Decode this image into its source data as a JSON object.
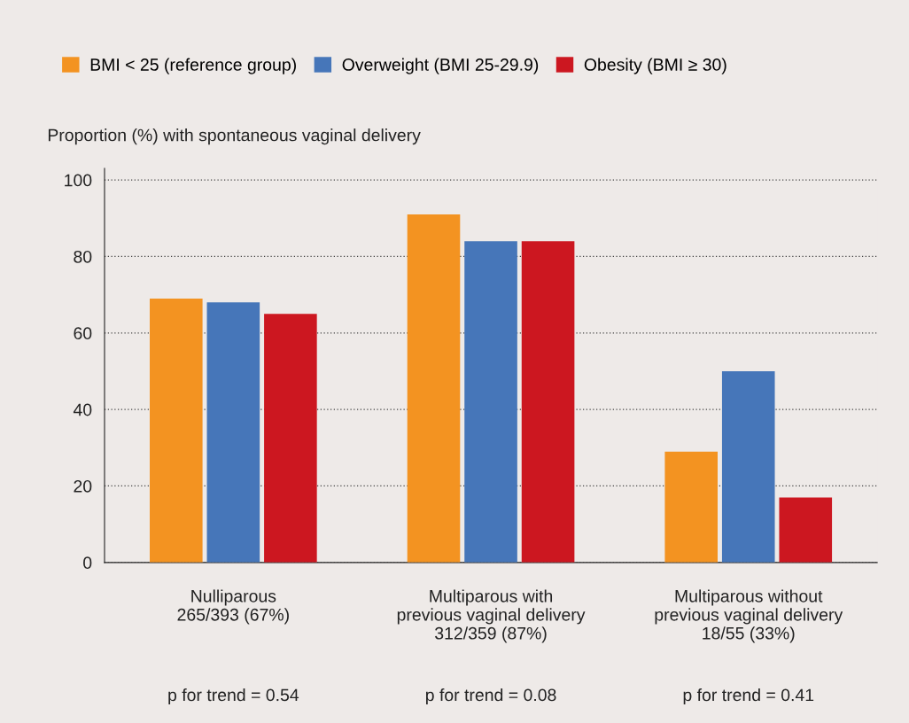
{
  "chart_data": {
    "type": "bar",
    "ylabel": "Proportion (%) with spontaneous vaginal delivery",
    "categories": [
      "Nulliparous\n265/393 (67%)",
      "Multiparous with\nprevious vaginal delivery\n312/359 (87%)",
      "Multiparous without\nprevious vaginal delivery\n18/55 (33%)"
    ],
    "series": [
      {
        "name": "BMI < 25 (reference group)",
        "color": "#f39321",
        "values": [
          69,
          91,
          29
        ]
      },
      {
        "name": "Overweight (BMI 25-29.9)",
        "color": "#4676b9",
        "values": [
          68,
          84,
          50
        ]
      },
      {
        "name": "Obesity (BMI ≥ 30)",
        "color": "#cc1720",
        "values": [
          65,
          84,
          17
        ]
      }
    ],
    "ylim": [
      0,
      103
    ],
    "yticks": [
      0,
      20,
      40,
      60,
      80,
      100
    ],
    "grid": "y",
    "legend": "top left",
    "annotations": [
      "p for trend = 0.54",
      "p for trend = 0.08",
      "p for trend = 0.41"
    ]
  }
}
